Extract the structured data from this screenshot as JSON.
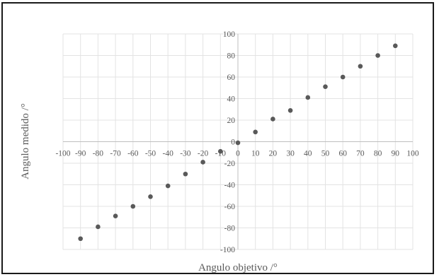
{
  "chart_data": {
    "type": "scatter",
    "title": "",
    "xlabel": "Angulo objetivo /°",
    "ylabel": "Angulo medido /°",
    "xlim": [
      -100,
      100
    ],
    "ylim": [
      -100,
      100
    ],
    "x_ticks": [
      "-100",
      "-90",
      "-80",
      "-70",
      "-60",
      "-50",
      "-40",
      "-30",
      "-20",
      "-10",
      "0",
      "10",
      "20",
      "30",
      "40",
      "50",
      "60",
      "70",
      "80",
      "90",
      "100"
    ],
    "y_ticks": [
      "100",
      "80",
      "60",
      "40",
      "20",
      "0",
      "-20",
      "-40",
      "-60",
      "-80",
      "-100"
    ],
    "grid": true,
    "legend": "none",
    "marker_color": "#595959",
    "series": [
      {
        "x": [
          -90,
          -80,
          -70,
          -60,
          -50,
          -40,
          -30,
          -20,
          -10,
          0,
          10,
          20,
          30,
          40,
          50,
          60,
          70,
          80,
          90
        ],
        "y": [
          -90,
          -79,
          -69,
          -60,
          -51,
          -41,
          -30,
          -19,
          -9,
          -1,
          9,
          21,
          29,
          41,
          51,
          60,
          70,
          80,
          89
        ]
      }
    ]
  }
}
